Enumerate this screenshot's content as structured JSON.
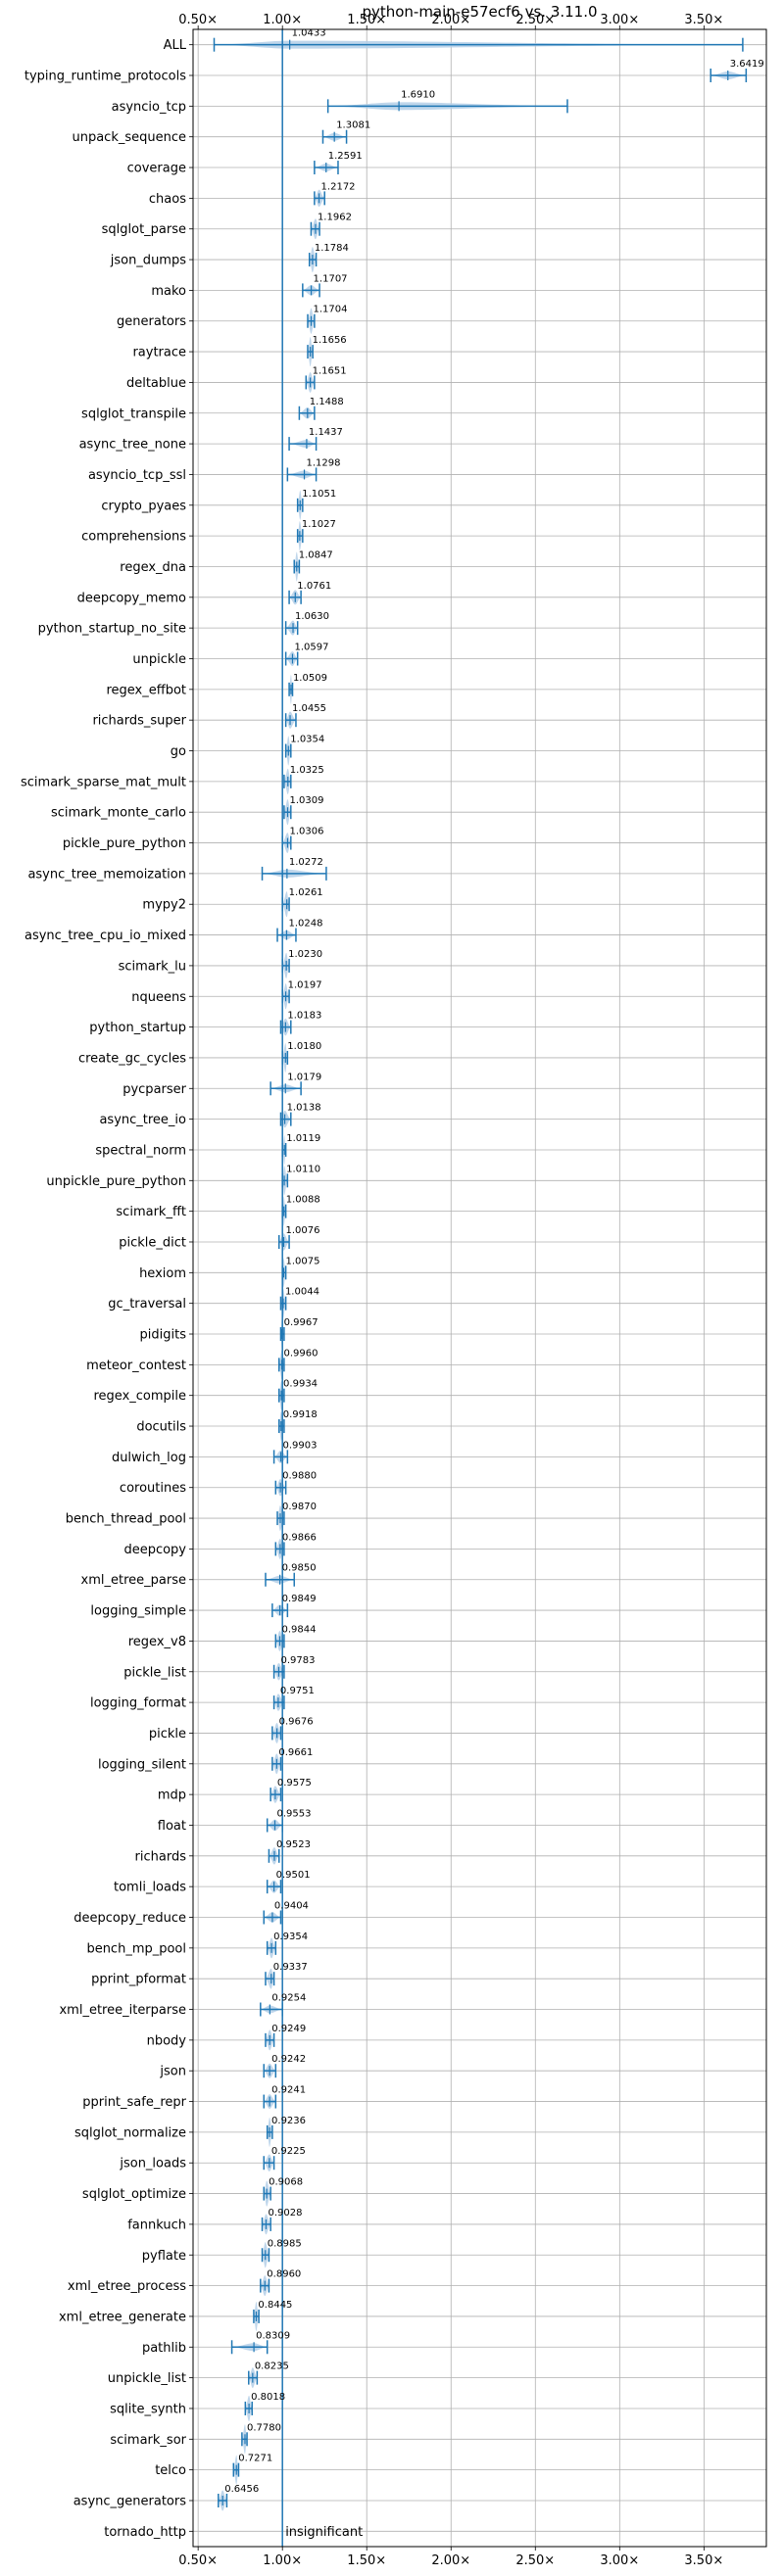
{
  "chart_data": {
    "type": "violin",
    "title": "python-main-e57ecf6 vs. 3.11.0",
    "xlabel": "",
    "ylabel": "",
    "xlim": [
      0.47,
      3.87
    ],
    "xticks": [
      0.5,
      1.0,
      1.5,
      2.0,
      2.5,
      3.0,
      3.5
    ],
    "xtick_labels": [
      "0.50×",
      "1.00×",
      "1.50×",
      "2.00×",
      "2.50×",
      "3.00×",
      "3.50×"
    ],
    "reference_line": 1.0,
    "grid": true,
    "color": "#1f77b4",
    "violin_fill": "#b4cfe7",
    "categories": [
      "ALL",
      "typing_runtime_protocols",
      "asyncio_tcp",
      "unpack_sequence",
      "coverage",
      "chaos",
      "sqlglot_parse",
      "json_dumps",
      "mako",
      "generators",
      "raytrace",
      "deltablue",
      "sqlglot_transpile",
      "async_tree_none",
      "asyncio_tcp_ssl",
      "crypto_pyaes",
      "comprehensions",
      "regex_dna",
      "deepcopy_memo",
      "python_startup_no_site",
      "unpickle",
      "regex_effbot",
      "richards_super",
      "go",
      "scimark_sparse_mat_mult",
      "scimark_monte_carlo",
      "pickle_pure_python",
      "async_tree_memoization",
      "mypy2",
      "async_tree_cpu_io_mixed",
      "scimark_lu",
      "nqueens",
      "python_startup",
      "create_gc_cycles",
      "pycparser",
      "async_tree_io",
      "spectral_norm",
      "unpickle_pure_python",
      "scimark_fft",
      "pickle_dict",
      "hexiom",
      "gc_traversal",
      "pidigits",
      "meteor_contest",
      "regex_compile",
      "docutils",
      "dulwich_log",
      "coroutines",
      "bench_thread_pool",
      "deepcopy",
      "xml_etree_parse",
      "logging_simple",
      "regex_v8",
      "pickle_list",
      "logging_format",
      "pickle",
      "logging_silent",
      "mdp",
      "float",
      "richards",
      "tomli_loads",
      "deepcopy_reduce",
      "bench_mp_pool",
      "pprint_pformat",
      "xml_etree_iterparse",
      "nbody",
      "json",
      "pprint_safe_repr",
      "sqlglot_normalize",
      "json_loads",
      "sqlglot_optimize",
      "fannkuch",
      "pyflate",
      "xml_etree_process",
      "xml_etree_generate",
      "pathlib",
      "unpickle_list",
      "sqlite_synth",
      "scimark_sor",
      "telco",
      "async_generators",
      "tornado_http"
    ],
    "values": [
      1.0433,
      3.6419,
      1.691,
      1.3081,
      1.2591,
      1.2172,
      1.1962,
      1.1784,
      1.1707,
      1.1704,
      1.1656,
      1.1651,
      1.1488,
      1.1437,
      1.1298,
      1.1051,
      1.1027,
      1.0847,
      1.0761,
      1.063,
      1.0597,
      1.0509,
      1.0455,
      1.0354,
      1.0325,
      1.0309,
      1.0306,
      1.0272,
      1.0261,
      1.0248,
      1.023,
      1.0197,
      1.0183,
      1.018,
      1.0179,
      1.0138,
      1.0119,
      1.011,
      1.0088,
      1.0076,
      1.0075,
      1.0044,
      0.9967,
      0.996,
      0.9934,
      0.9918,
      0.9903,
      0.988,
      0.987,
      0.9866,
      0.985,
      0.9849,
      0.9844,
      0.9783,
      0.9751,
      0.9676,
      0.9661,
      0.9575,
      0.9553,
      0.9523,
      0.9501,
      0.9404,
      0.9354,
      0.9337,
      0.9254,
      0.9249,
      0.9242,
      0.9241,
      0.9236,
      0.9225,
      0.9068,
      0.9028,
      0.8985,
      0.896,
      0.8445,
      0.8309,
      0.8235,
      0.8018,
      0.778,
      0.7271,
      0.6456,
      null
    ],
    "value_labels": [
      "1.0433",
      "3.6419",
      "1.6910",
      "1.3081",
      "1.2591",
      "1.2172",
      "1.1962",
      "1.1784",
      "1.1707",
      "1.1704",
      "1.1656",
      "1.1651",
      "1.1488",
      "1.1437",
      "1.1298",
      "1.1051",
      "1.1027",
      "1.0847",
      "1.0761",
      "1.0630",
      "1.0597",
      "1.0509",
      "1.0455",
      "1.0354",
      "1.0325",
      "1.0309",
      "1.0306",
      "1.0272",
      "1.0261",
      "1.0248",
      "1.0230",
      "1.0197",
      "1.0183",
      "1.0180",
      "1.0179",
      "1.0138",
      "1.0119",
      "1.0110",
      "1.0088",
      "1.0076",
      "1.0075",
      "1.0044",
      "0.9967",
      "0.9960",
      "0.9934",
      "0.9918",
      "0.9903",
      "0.9880",
      "0.9870",
      "0.9866",
      "0.9850",
      "0.9849",
      "0.9844",
      "0.9783",
      "0.9751",
      "0.9676",
      "0.9661",
      "0.9575",
      "0.9553",
      "0.9523",
      "0.9501",
      "0.9404",
      "0.9354",
      "0.9337",
      "0.9254",
      "0.9249",
      "0.9242",
      "0.9241",
      "0.9236",
      "0.9225",
      "0.9068",
      "0.9028",
      "0.8985",
      "0.8960",
      "0.8445",
      "0.8309",
      "0.8235",
      "0.8018",
      "0.7780",
      "0.7271",
      "0.6456",
      ""
    ],
    "ranges": [
      [
        0.595,
        3.73
      ],
      [
        3.54,
        3.75
      ],
      [
        1.27,
        2.69
      ],
      [
        1.24,
        1.38
      ],
      [
        1.19,
        1.33
      ],
      [
        1.19,
        1.25
      ],
      [
        1.17,
        1.22
      ],
      [
        1.16,
        1.2
      ],
      [
        1.12,
        1.22
      ],
      [
        1.15,
        1.19
      ],
      [
        1.15,
        1.18
      ],
      [
        1.14,
        1.19
      ],
      [
        1.1,
        1.19
      ],
      [
        1.04,
        1.2
      ],
      [
        1.03,
        1.2
      ],
      [
        1.09,
        1.12
      ],
      [
        1.09,
        1.12
      ],
      [
        1.07,
        1.1
      ],
      [
        1.04,
        1.11
      ],
      [
        1.02,
        1.09
      ],
      [
        1.02,
        1.09
      ],
      [
        1.04,
        1.06
      ],
      [
        1.02,
        1.08
      ],
      [
        1.02,
        1.05
      ],
      [
        1.01,
        1.05
      ],
      [
        1.01,
        1.05
      ],
      [
        1.0,
        1.05
      ],
      [
        0.88,
        1.26
      ],
      [
        1.0,
        1.04
      ],
      [
        0.97,
        1.08
      ],
      [
        1.0,
        1.04
      ],
      [
        1.0,
        1.04
      ],
      [
        0.99,
        1.05
      ],
      [
        1.0,
        1.03
      ],
      [
        0.93,
        1.11
      ],
      [
        0.99,
        1.05
      ],
      [
        1.0,
        1.02
      ],
      [
        1.0,
        1.03
      ],
      [
        1.0,
        1.02
      ],
      [
        0.98,
        1.04
      ],
      [
        1.0,
        1.02
      ],
      [
        0.99,
        1.02
      ],
      [
        0.99,
        1.01
      ],
      [
        0.98,
        1.01
      ],
      [
        0.98,
        1.01
      ],
      [
        0.98,
        1.01
      ],
      [
        0.95,
        1.03
      ],
      [
        0.96,
        1.02
      ],
      [
        0.97,
        1.01
      ],
      [
        0.96,
        1.01
      ],
      [
        0.9,
        1.07
      ],
      [
        0.94,
        1.03
      ],
      [
        0.96,
        1.01
      ],
      [
        0.95,
        1.01
      ],
      [
        0.95,
        1.01
      ],
      [
        0.94,
        0.99
      ],
      [
        0.94,
        0.99
      ],
      [
        0.93,
        0.99
      ],
      [
        0.91,
        1.0
      ],
      [
        0.92,
        0.98
      ],
      [
        0.91,
        0.99
      ],
      [
        0.89,
        0.99
      ],
      [
        0.91,
        0.96
      ],
      [
        0.9,
        0.95
      ],
      [
        0.87,
        1.0
      ],
      [
        0.9,
        0.95
      ],
      [
        0.89,
        0.96
      ],
      [
        0.89,
        0.96
      ],
      [
        0.91,
        0.94
      ],
      [
        0.89,
        0.95
      ],
      [
        0.89,
        0.93
      ],
      [
        0.88,
        0.93
      ],
      [
        0.88,
        0.92
      ],
      [
        0.87,
        0.92
      ],
      [
        0.83,
        0.86
      ],
      [
        0.7,
        0.91
      ],
      [
        0.8,
        0.85
      ],
      [
        0.78,
        0.82
      ],
      [
        0.76,
        0.79
      ],
      [
        0.71,
        0.74
      ],
      [
        0.62,
        0.67
      ],
      null
    ],
    "annotations": [
      {
        "category": "tornado_http",
        "text": "insignificant"
      }
    ]
  }
}
